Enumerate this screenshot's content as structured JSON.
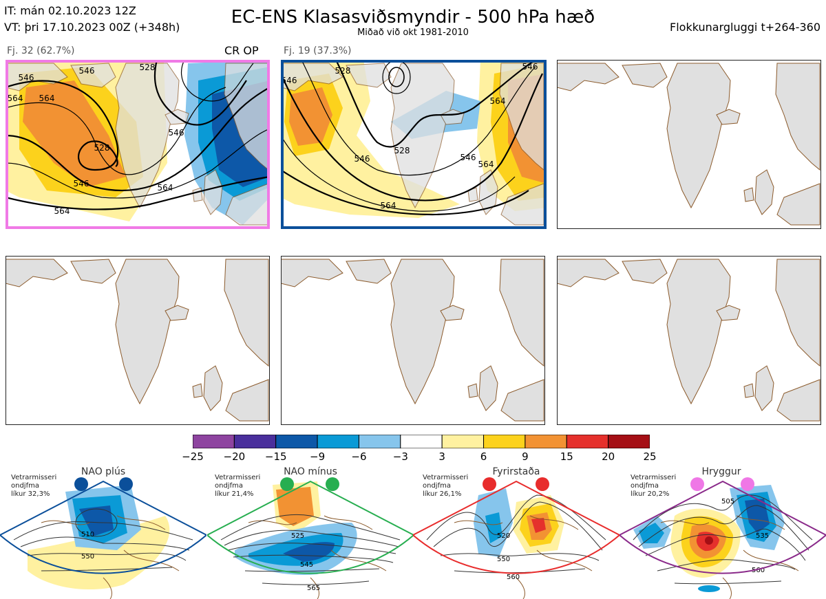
{
  "header": {
    "it": "IT: mán 02.10.2023 12Z",
    "vt": "VT: þri 17.10.2023 00Z  (+348h)",
    "title": "EC-ENS Klasasviðsmyndir - 500 hPa hæð",
    "subtitle": "Miðað við okt 1981-2010",
    "window": "Flokkunargluggi t+264-360"
  },
  "colors": {
    "land": "#e0e0e0",
    "coast": "#8b5a2b",
    "frame_pink": "#f07ae6",
    "frame_blue": "#0b4f9a"
  },
  "chart_data": {
    "type": "heatmap",
    "clusters": [
      {
        "label": "Fj. 32 (62.7%)",
        "members": 32,
        "percent": 62.7,
        "tag": "CR OP",
        "contour_labels": [
          "546",
          "564",
          "528",
          "546",
          "564",
          "546",
          "564",
          "528",
          "546"
        ]
      },
      {
        "label": "Fj. 19 (37.3%)",
        "members": 19,
        "percent": 37.3,
        "tag": "",
        "contour_labels": [
          "546",
          "528",
          "528",
          "546",
          "564",
          "546",
          "564",
          "546"
        ]
      }
    ],
    "empty_panels": 4,
    "colorbar": {
      "ticks": [
        "−25",
        "−20",
        "−15",
        "−9",
        "−6",
        "−3",
        "3",
        "6",
        "9",
        "15",
        "20",
        "25"
      ],
      "colors": [
        "#8e44a0",
        "#4a2f9c",
        "#0d58a8",
        "#0a9ad6",
        "#86c5ec",
        "#ffffff",
        "#fff1a0",
        "#fcd21c",
        "#f29233",
        "#e5302c",
        "#a50f15"
      ]
    },
    "regimes": [
      {
        "name": "NAO plús",
        "info": [
          "Vetrarmisseri",
          "ondjfma",
          "líkur 32,3%"
        ],
        "probability": 32.3,
        "dot_color": "#0b4f9a",
        "frame_color": "#0b4f9a",
        "contour_labels": [
          "510",
          "550"
        ]
      },
      {
        "name": "NAO mínus",
        "info": [
          "Vetrarmisseri",
          "ondjfma",
          "líkur 21,4%"
        ],
        "probability": 21.4,
        "dot_color": "#27ae50",
        "frame_color": "#27ae50",
        "contour_labels": [
          "525",
          "545",
          "565"
        ]
      },
      {
        "name": "Fyrirstaða",
        "info": [
          "Vetrarmisseri",
          "ondjfma",
          "líkur 26,1%"
        ],
        "probability": 26.1,
        "dot_color": "#e82c2c",
        "frame_color": "#e82c2c",
        "contour_labels": [
          "520",
          "550",
          "560"
        ]
      },
      {
        "name": "Hryggur",
        "info": [
          "Vetrarmisseri",
          "ondjfma",
          "líkur 20,2%"
        ],
        "probability": 20.2,
        "dot_color": "#ef77e6",
        "frame_color": "#8a2a8a",
        "contour_labels": [
          "505",
          "535",
          "560"
        ]
      }
    ]
  }
}
